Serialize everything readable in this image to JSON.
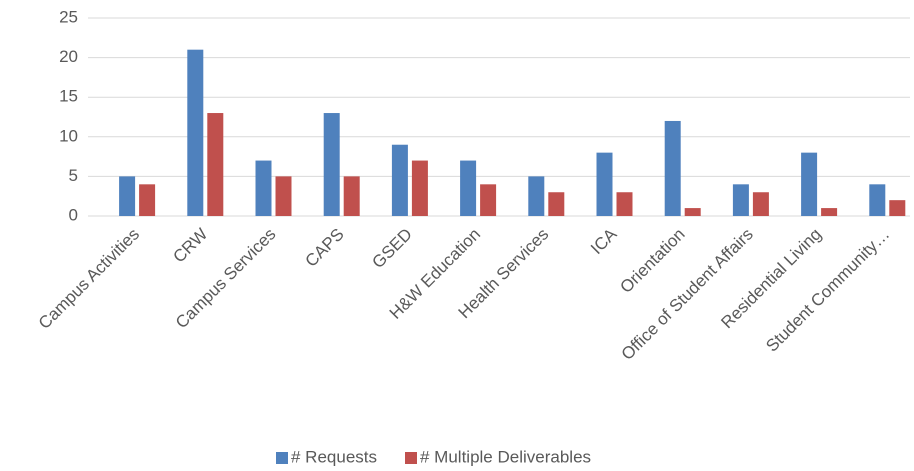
{
  "chart_data": {
    "type": "bar",
    "categories": [
      "Campus Activities",
      "CRW",
      "Campus Services",
      "CAPS",
      "GSED",
      "H&W Education",
      "Health Services",
      "ICA",
      "Orientation",
      "Office of Student Affairs",
      "Residential Living",
      "Student Community…"
    ],
    "series": [
      {
        "name": "# Requests",
        "color": "#4f81bd",
        "values": [
          5,
          21,
          7,
          13,
          9,
          7,
          5,
          8,
          12,
          4,
          8,
          4
        ]
      },
      {
        "name": "# Multiple Deliverables",
        "color": "#c0504d",
        "values": [
          4,
          13,
          5,
          5,
          7,
          4,
          3,
          3,
          1,
          3,
          1,
          2
        ]
      }
    ],
    "ylim": [
      0,
      25
    ],
    "yticks": [
      0,
      5,
      10,
      15,
      20,
      25
    ],
    "grid": true,
    "legend": "bottom"
  }
}
